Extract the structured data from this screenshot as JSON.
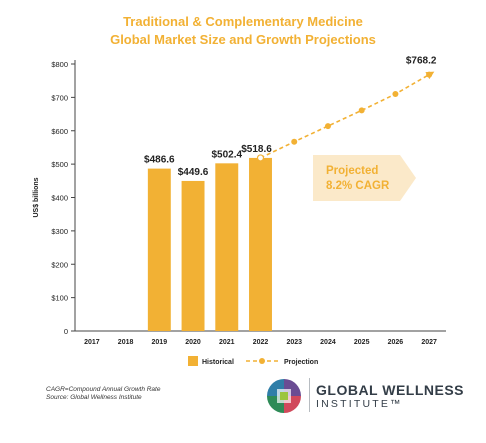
{
  "header": {
    "title_line1": "Traditional & Complementary Medicine",
    "title_line2": "Global Market Size and Growth Projections"
  },
  "chart_data": {
    "type": "bar",
    "categories": [
      "2017",
      "2018",
      "2019",
      "2020",
      "2021",
      "2022",
      "2023",
      "2024",
      "2025",
      "2026",
      "2027"
    ],
    "ylabel": "US$ billions",
    "ylim": [
      0,
      800
    ],
    "yticks": [
      0,
      100,
      200,
      300,
      400,
      500,
      600,
      700,
      800
    ],
    "ytick_labels": [
      "0",
      "$100",
      "$200",
      "$300",
      "$400",
      "$500",
      "$600",
      "$700",
      "$800"
    ],
    "grid": false,
    "series": [
      {
        "name": "Historical",
        "type": "bar",
        "color": "#F2B134",
        "x": [
          "2019",
          "2020",
          "2021",
          "2022"
        ],
        "values": [
          486.6,
          449.6,
          502.4,
          518.6
        ],
        "labels": [
          "$486.6",
          "$449.6",
          "$502.4",
          "$518.6"
        ]
      },
      {
        "name": "Projection",
        "type": "line",
        "style": "dashed",
        "color": "#F2B134",
        "x": [
          "2022",
          "2023",
          "2024",
          "2025",
          "2026",
          "2027"
        ],
        "values": [
          518.6,
          567,
          614,
          661,
          710,
          768.2
        ],
        "end_label": "$768.2"
      }
    ],
    "annotation": {
      "line1": "Projected",
      "line2": "8.2% CAGR"
    },
    "legend_position": "bottom"
  },
  "footnote": {
    "line1": "CAGR=Compound Annual Growth Rate",
    "line2": "Source: Global Wellness Institute"
  },
  "logo": {
    "name": "GLOBAL WELLNESS",
    "sub": "INSTITUTE™"
  },
  "colors": {
    "accent": "#F2B134",
    "annotation_fill": "#FBE9C9",
    "annotation_text": "#F2B134",
    "axis": "#444444"
  }
}
